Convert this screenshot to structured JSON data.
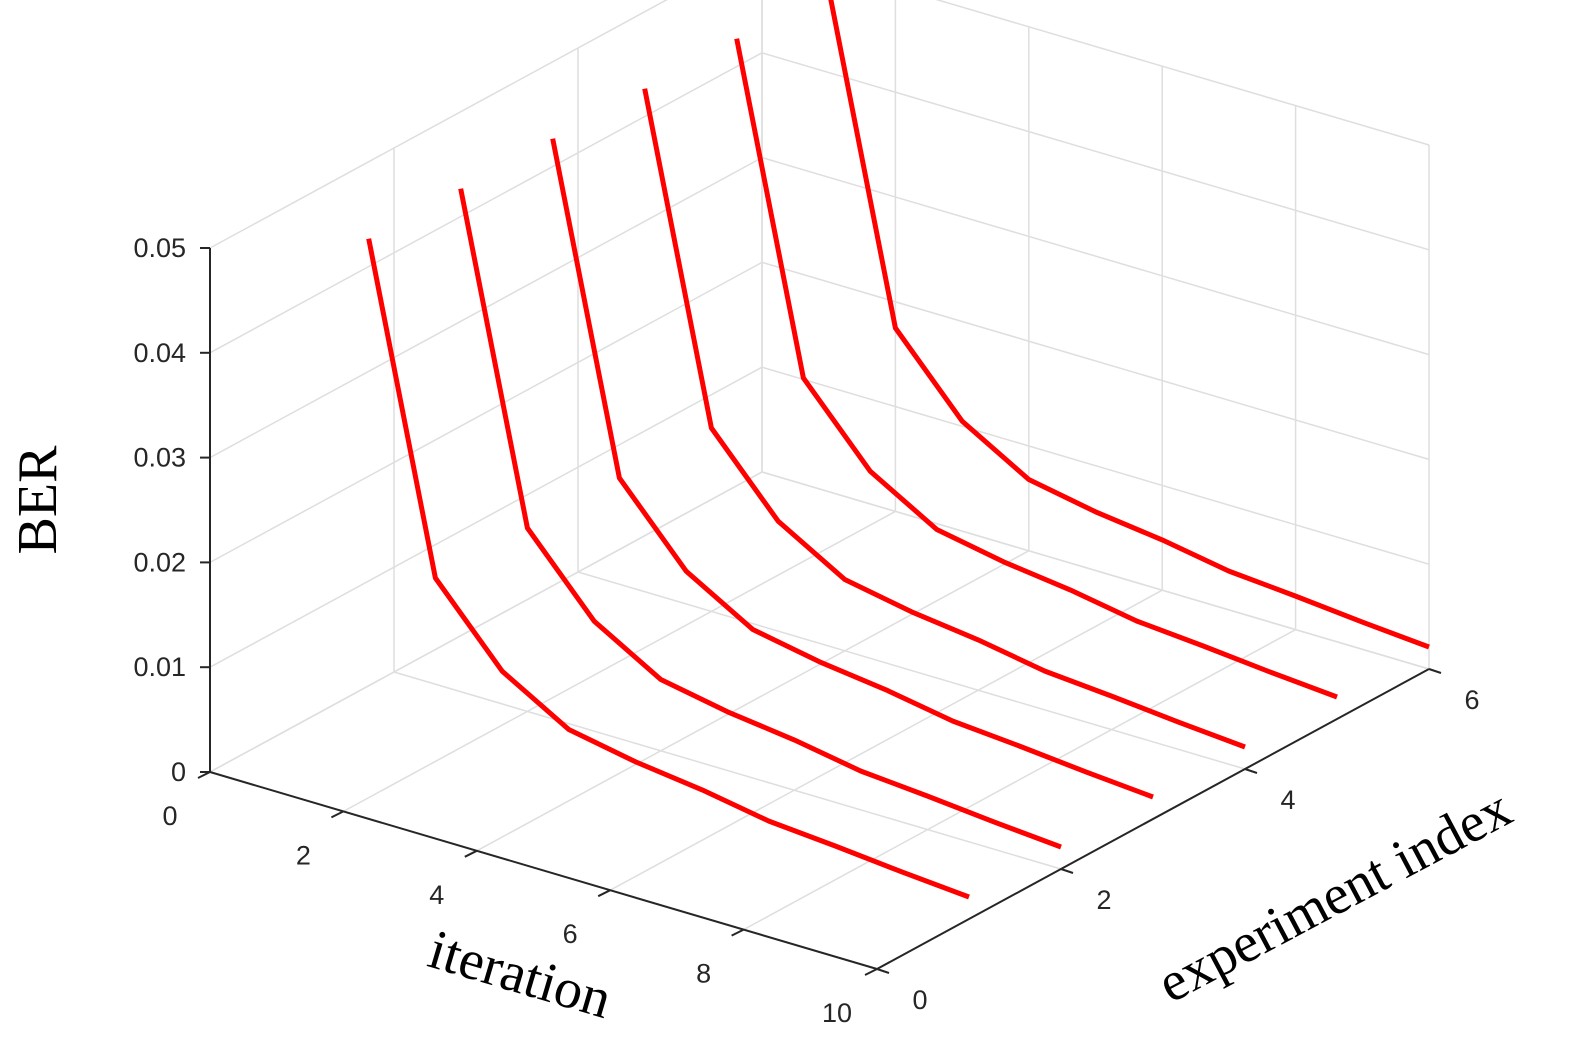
{
  "chart_data": {
    "type": "line",
    "projection": "3d",
    "xlabel": "iteration",
    "ylabel": "experiment index",
    "zlabel": "BER",
    "xlim": [
      0,
      10
    ],
    "ylim": [
      0,
      6
    ],
    "zlim": [
      0,
      0.05
    ],
    "x_ticks": [
      "0",
      "2",
      "4",
      "6",
      "8",
      "10"
    ],
    "y_ticks": [
      "0",
      "2",
      "4",
      "6"
    ],
    "z_ticks": [
      "0",
      "0.01",
      "0.02",
      "0.03",
      "0.04",
      "0.05"
    ],
    "grid": true,
    "series_color": "#ff0000",
    "x": [
      1,
      2,
      3,
      4,
      5,
      6,
      7,
      8,
      9,
      10
    ],
    "series": [
      {
        "experiment_index": 1,
        "values": [
          0.048,
          0.0175,
          0.0105,
          0.0068,
          0.0056,
          0.0048,
          0.0037,
          0.0032,
          0.0026,
          0.0021
        ]
      },
      {
        "experiment_index": 2,
        "values": [
          0.048,
          0.0175,
          0.0105,
          0.0068,
          0.0056,
          0.0048,
          0.0037,
          0.0032,
          0.0026,
          0.0021
        ]
      },
      {
        "experiment_index": 3,
        "values": [
          0.048,
          0.0175,
          0.0105,
          0.0068,
          0.0056,
          0.0048,
          0.0037,
          0.0032,
          0.0026,
          0.0021
        ]
      },
      {
        "experiment_index": 4,
        "values": [
          0.048,
          0.0175,
          0.0105,
          0.0068,
          0.0056,
          0.0048,
          0.0037,
          0.0032,
          0.0026,
          0.0021
        ]
      },
      {
        "experiment_index": 5,
        "values": [
          0.048,
          0.0175,
          0.0105,
          0.0068,
          0.0056,
          0.0048,
          0.0037,
          0.0032,
          0.0026,
          0.0021
        ]
      },
      {
        "experiment_index": 6,
        "values": [
          0.048,
          0.0175,
          0.0105,
          0.0068,
          0.0056,
          0.0048,
          0.0037,
          0.0032,
          0.0026,
          0.0021
        ]
      }
    ]
  }
}
